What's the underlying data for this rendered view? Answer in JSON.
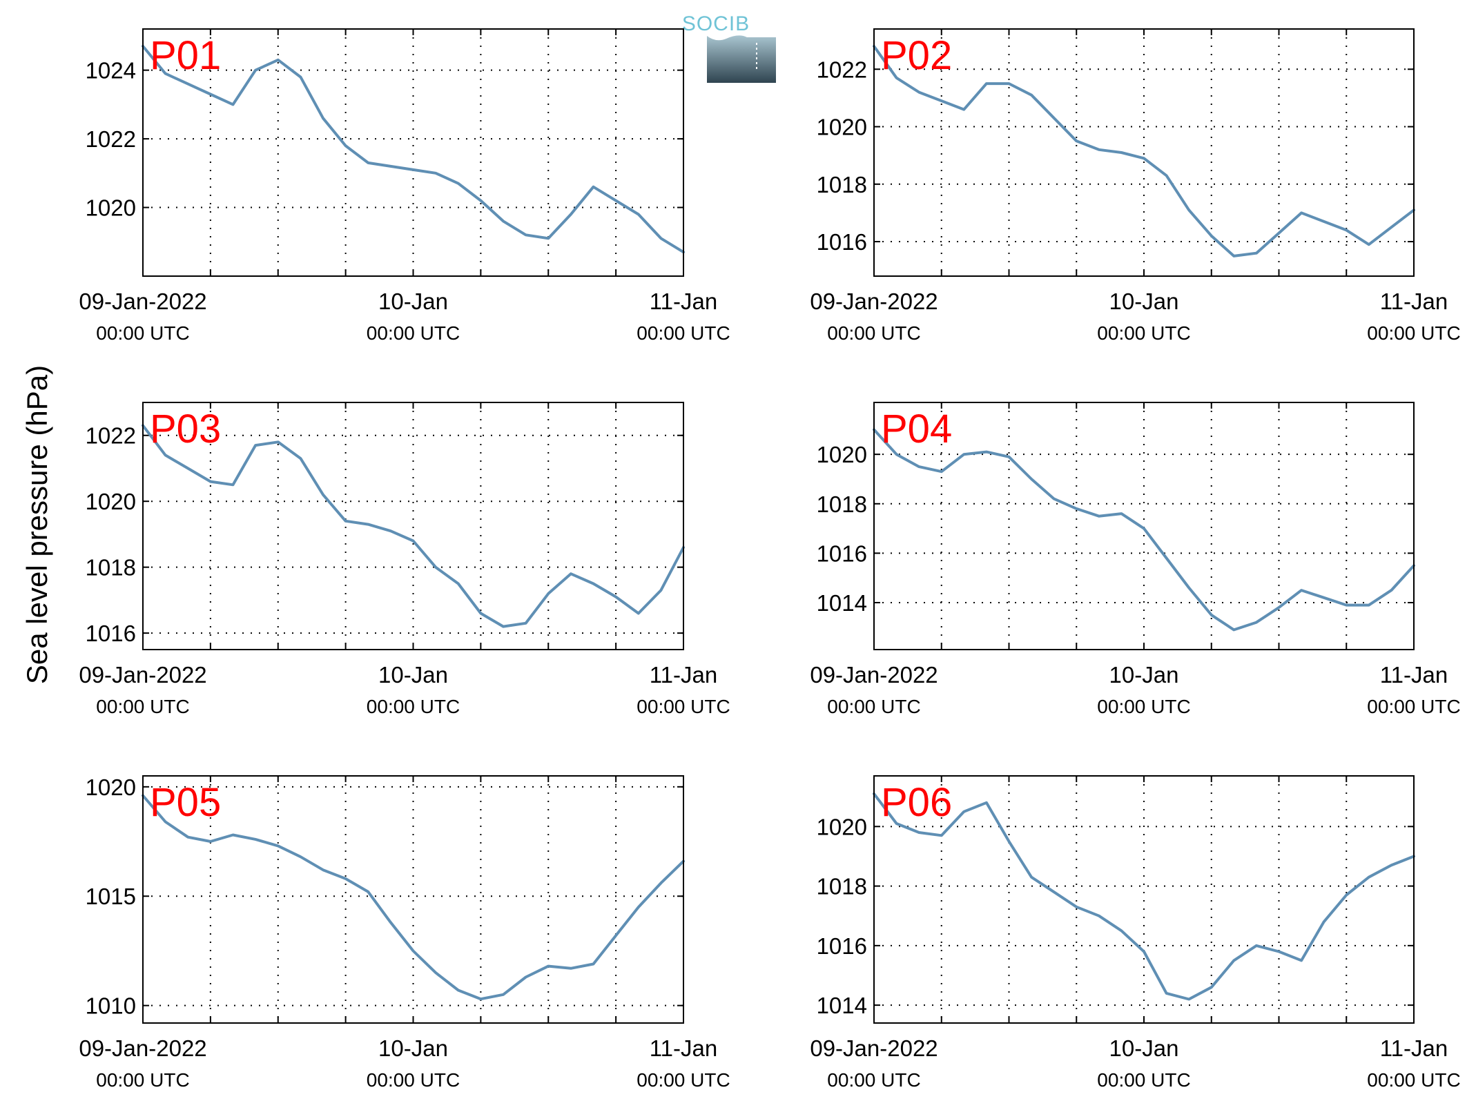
{
  "figure": {
    "ylabel": "Sea level pressure (hPa)",
    "logo_text": "SOCIB"
  },
  "colors": {
    "line": "#5f8fb4",
    "panel_label": "#ff0000",
    "grid": "#000000",
    "logo_text": "#6fc3d6",
    "logo_top": "#a9c5d0",
    "logo_bottom": "#2f4450"
  },
  "chart_data": [
    {
      "type": "line",
      "panel_label": "P01",
      "x_unit": "hours since 09-Jan-2022 00:00 UTC",
      "x": [
        0,
        2,
        4,
        6,
        8,
        10,
        12,
        14,
        16,
        18,
        20,
        22,
        24,
        26,
        28,
        30,
        32,
        34,
        36,
        38,
        40,
        42,
        44,
        46,
        48
      ],
      "y": [
        1024.7,
        1023.9,
        1023.6,
        1023.3,
        1023.0,
        1024.0,
        1024.3,
        1023.8,
        1022.6,
        1021.8,
        1021.3,
        1021.2,
        1021.1,
        1021.0,
        1020.7,
        1020.2,
        1019.6,
        1019.2,
        1019.1,
        1019.8,
        1020.6,
        1020.2,
        1019.8,
        1019.1,
        1018.7
      ],
      "ylim": [
        1018.0,
        1025.2
      ],
      "yticks": [
        1020,
        1022,
        1024
      ]
    },
    {
      "type": "line",
      "panel_label": "P02",
      "x_unit": "hours since 09-Jan-2022 00:00 UTC",
      "x": [
        0,
        2,
        4,
        6,
        8,
        10,
        12,
        14,
        16,
        18,
        20,
        22,
        24,
        26,
        28,
        30,
        32,
        34,
        36,
        38,
        40,
        42,
        44,
        46,
        48
      ],
      "y": [
        1022.8,
        1021.7,
        1021.2,
        1020.9,
        1020.6,
        1021.5,
        1021.5,
        1021.1,
        1020.3,
        1019.5,
        1019.2,
        1019.1,
        1018.9,
        1018.3,
        1017.1,
        1016.2,
        1015.5,
        1015.6,
        1016.3,
        1017.0,
        1016.7,
        1016.4,
        1015.9,
        1016.5,
        1017.1
      ],
      "ylim": [
        1014.8,
        1023.4
      ],
      "yticks": [
        1016,
        1018,
        1020,
        1022
      ]
    },
    {
      "type": "line",
      "panel_label": "P03",
      "x_unit": "hours since 09-Jan-2022 00:00 UTC",
      "x": [
        0,
        2,
        4,
        6,
        8,
        10,
        12,
        14,
        16,
        18,
        20,
        22,
        24,
        26,
        28,
        30,
        32,
        34,
        36,
        38,
        40,
        42,
        44,
        46,
        48
      ],
      "y": [
        1022.3,
        1021.4,
        1021.0,
        1020.6,
        1020.5,
        1021.7,
        1021.8,
        1021.3,
        1020.2,
        1019.4,
        1019.3,
        1019.1,
        1018.8,
        1018.0,
        1017.5,
        1016.6,
        1016.2,
        1016.3,
        1017.2,
        1017.8,
        1017.5,
        1017.1,
        1016.6,
        1017.3,
        1018.6
      ],
      "ylim": [
        1015.5,
        1023.0
      ],
      "yticks": [
        1016,
        1018,
        1020,
        1022
      ]
    },
    {
      "type": "line",
      "panel_label": "P04",
      "x_unit": "hours since 09-Jan-2022 00:00 UTC",
      "x": [
        0,
        2,
        4,
        6,
        8,
        10,
        12,
        14,
        16,
        18,
        20,
        22,
        24,
        26,
        28,
        30,
        32,
        34,
        36,
        38,
        40,
        42,
        44,
        46,
        48
      ],
      "y": [
        1021.0,
        1020.0,
        1019.5,
        1019.3,
        1020.0,
        1020.1,
        1019.9,
        1019.0,
        1018.2,
        1017.8,
        1017.5,
        1017.6,
        1017.0,
        1015.8,
        1014.6,
        1013.5,
        1012.9,
        1013.2,
        1013.8,
        1014.5,
        1014.2,
        1013.9,
        1013.9,
        1014.5,
        1015.5
      ],
      "ylim": [
        1012.1,
        1022.1
      ],
      "yticks": [
        1014,
        1016,
        1018,
        1020
      ]
    },
    {
      "type": "line",
      "panel_label": "P05",
      "x_unit": "hours since 09-Jan-2022 00:00 UTC",
      "x": [
        0,
        2,
        4,
        6,
        8,
        10,
        12,
        14,
        16,
        18,
        20,
        22,
        24,
        26,
        28,
        30,
        32,
        34,
        36,
        38,
        40,
        42,
        44,
        46,
        48
      ],
      "y": [
        1019.6,
        1018.4,
        1017.7,
        1017.5,
        1017.8,
        1017.6,
        1017.3,
        1016.8,
        1016.2,
        1015.8,
        1015.2,
        1013.8,
        1012.5,
        1011.5,
        1010.7,
        1010.3,
        1010.5,
        1011.3,
        1011.8,
        1011.7,
        1011.9,
        1013.2,
        1014.5,
        1015.6,
        1016.6
      ],
      "ylim": [
        1009.2,
        1020.5
      ],
      "yticks": [
        1010,
        1015,
        1020
      ]
    },
    {
      "type": "line",
      "panel_label": "P06",
      "x_unit": "hours since 09-Jan-2022 00:00 UTC",
      "x": [
        0,
        2,
        4,
        6,
        8,
        10,
        12,
        14,
        16,
        18,
        20,
        22,
        24,
        26,
        28,
        30,
        32,
        34,
        36,
        38,
        40,
        42,
        44,
        46,
        48
      ],
      "y": [
        1021.1,
        1020.1,
        1019.8,
        1019.7,
        1020.5,
        1020.8,
        1019.5,
        1018.3,
        1017.8,
        1017.3,
        1017.0,
        1016.5,
        1015.8,
        1014.4,
        1014.2,
        1014.6,
        1015.5,
        1016.0,
        1015.8,
        1015.5,
        1016.8,
        1017.7,
        1018.3,
        1018.7,
        1019.0
      ],
      "ylim": [
        1013.4,
        1021.7
      ],
      "yticks": [
        1014,
        1016,
        1018,
        1020
      ]
    }
  ],
  "xaxis": {
    "range_hours": [
      0,
      48
    ],
    "grid_every_hours": 6,
    "labeled_ticks": [
      {
        "hour": 0,
        "line1": "09-Jan-2022",
        "line2": "00:00 UTC"
      },
      {
        "hour": 24,
        "line1": "10-Jan",
        "line2": "00:00 UTC"
      },
      {
        "hour": 48,
        "line1": "11-Jan",
        "line2": "00:00 UTC"
      }
    ]
  }
}
